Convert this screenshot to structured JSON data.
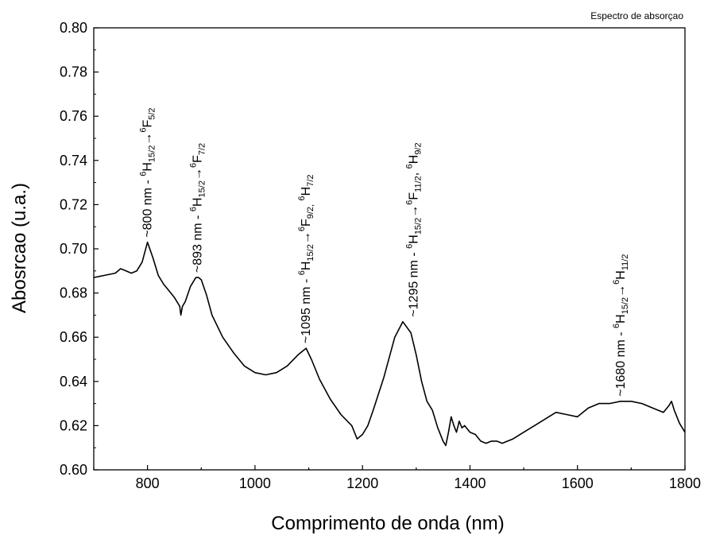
{
  "chart_data": {
    "type": "line",
    "corner_title": "Espectro de absorçao",
    "xlabel": "Comprimento de onda (nm)",
    "ylabel": "Abosrcao (u.a.)",
    "xlim": [
      700,
      1800
    ],
    "ylim": [
      0.6,
      0.8
    ],
    "x_ticks": [
      800,
      1000,
      1200,
      1400,
      1600,
      1800
    ],
    "x_tick_labels": [
      "800",
      "1000",
      "1200",
      "1400",
      "1600",
      "1800"
    ],
    "y_ticks": [
      0.6,
      0.62,
      0.64,
      0.66,
      0.68,
      0.7,
      0.72,
      0.74,
      0.76,
      0.78,
      0.8
    ],
    "y_tick_labels": [
      "0.60",
      "0.62",
      "0.64",
      "0.66",
      "0.68",
      "0.70",
      "0.72",
      "0.74",
      "0.76",
      "0.78",
      "0.80"
    ],
    "grid": false,
    "line_color": "#000000",
    "series": [
      {
        "x": [
          700,
          720,
          740,
          750,
          760,
          770,
          780,
          790,
          800,
          810,
          820,
          830,
          840,
          850,
          860,
          862,
          865,
          870,
          880,
          890,
          895,
          900,
          910,
          920,
          940,
          960,
          980,
          1000,
          1020,
          1040,
          1060,
          1080,
          1095,
          1105,
          1120,
          1140,
          1160,
          1180,
          1190,
          1200,
          1210,
          1220,
          1240,
          1260,
          1275,
          1290,
          1300,
          1310,
          1320,
          1330,
          1340,
          1350,
          1355,
          1360,
          1365,
          1370,
          1375,
          1380,
          1385,
          1390,
          1400,
          1410,
          1420,
          1430,
          1440,
          1450,
          1460,
          1480,
          1500,
          1520,
          1540,
          1560,
          1580,
          1600,
          1620,
          1640,
          1660,
          1680,
          1700,
          1720,
          1740,
          1760,
          1770,
          1775,
          1780,
          1790,
          1800
        ],
        "y": [
          0.687,
          0.688,
          0.689,
          0.691,
          0.69,
          0.689,
          0.69,
          0.694,
          0.703,
          0.696,
          0.688,
          0.684,
          0.681,
          0.678,
          0.674,
          0.67,
          0.674,
          0.676,
          0.683,
          0.687,
          0.687,
          0.686,
          0.679,
          0.67,
          0.66,
          0.653,
          0.647,
          0.644,
          0.643,
          0.644,
          0.647,
          0.652,
          0.655,
          0.65,
          0.641,
          0.632,
          0.625,
          0.62,
          0.614,
          0.616,
          0.62,
          0.627,
          0.642,
          0.66,
          0.667,
          0.662,
          0.652,
          0.64,
          0.631,
          0.627,
          0.619,
          0.613,
          0.611,
          0.617,
          0.624,
          0.62,
          0.617,
          0.622,
          0.619,
          0.62,
          0.617,
          0.616,
          0.613,
          0.612,
          0.613,
          0.613,
          0.612,
          0.614,
          0.617,
          0.62,
          0.623,
          0.626,
          0.625,
          0.624,
          0.628,
          0.63,
          0.63,
          0.631,
          0.631,
          0.63,
          0.628,
          0.626,
          0.629,
          0.631,
          0.627,
          0.621,
          0.617
        ]
      }
    ],
    "annotations": [
      {
        "x": 800,
        "y": 0.703,
        "prefix": "~800 nm - ",
        "lower": "15/2",
        "arrow": "→",
        "upper_state": "F",
        "upper_j": "5/2",
        "extra": ""
      },
      {
        "x": 893,
        "y": 0.687,
        "prefix": "~893 nm - ",
        "lower": "15/2",
        "arrow": "→",
        "upper_state": "F",
        "upper_j": "7/2",
        "extra": ""
      },
      {
        "x": 1095,
        "y": 0.655,
        "prefix": "~1095 nm - ",
        "lower": "15/2",
        "arrow": "→",
        "upper_state": "F",
        "upper_j": "9/2,",
        "extra": "H",
        "extra_j": "7/2"
      },
      {
        "x": 1295,
        "y": 0.667,
        "prefix": "~1295 nm - ",
        "lower": "15/2",
        "arrow": "→",
        "upper_state": "F",
        "upper_j": "11/2",
        "extra": "H",
        "extra_j": "9/2",
        "sep": ", "
      },
      {
        "x": 1680,
        "y": 0.631,
        "prefix": "~1680 nm - ",
        "lower": "15/2",
        "arrow": "→",
        "upper_state": "H",
        "upper_j": "11/2",
        "extra": ""
      }
    ]
  }
}
